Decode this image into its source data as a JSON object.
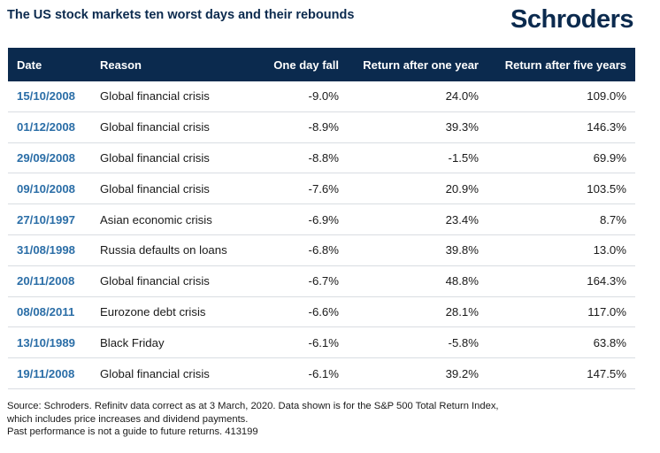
{
  "title": "The US stock markets ten worst days and their rebounds",
  "brand": {
    "logo_text": "Schroders",
    "color": "#0b2a4e"
  },
  "accent_colors": {
    "header_bg": "#0b2a4e",
    "date_text": "#2b6ea7",
    "row_divider": "#d9dde2"
  },
  "table": {
    "headers": [
      "Date",
      "Reason",
      "One day fall",
      "Return after one year",
      "Return after five years"
    ],
    "rows": [
      [
        "15/10/2008",
        "Global financial crisis",
        "-9.0%",
        "24.0%",
        "109.0%"
      ],
      [
        "01/12/2008",
        "Global financial crisis",
        "-8.9%",
        "39.3%",
        "146.3%"
      ],
      [
        "29/09/2008",
        "Global financial crisis",
        "-8.8%",
        "-1.5%",
        "69.9%"
      ],
      [
        "09/10/2008",
        "Global financial crisis",
        "-7.6%",
        "20.9%",
        "103.5%"
      ],
      [
        "27/10/1997",
        "Asian economic crisis",
        "-6.9%",
        "23.4%",
        "8.7%"
      ],
      [
        "31/08/1998",
        "Russia defaults on loans",
        "-6.8%",
        "39.8%",
        "13.0%"
      ],
      [
        "20/11/2008",
        "Global financial crisis",
        "-6.7%",
        "48.8%",
        "164.3%"
      ],
      [
        "08/08/2011",
        "Eurozone debt crisis",
        "-6.6%",
        "28.1%",
        "117.0%"
      ],
      [
        "13/10/1989",
        "Black Friday",
        "-6.1%",
        "-5.8%",
        "63.8%"
      ],
      [
        "19/11/2008",
        "Global financial crisis",
        "-6.1%",
        "39.2%",
        "147.5%"
      ]
    ]
  },
  "footnote": [
    "Source: Schroders. Refinitv data correct as at 3 March, 2020. Data shown is for the S&P 500 Total Return Index,",
    "which includes price increases and dividend payments.",
    "Past performance is not a guide to future returns. 413199"
  ]
}
